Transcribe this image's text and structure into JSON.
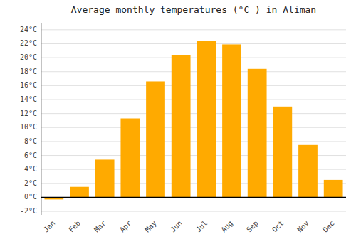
{
  "chart_data": {
    "type": "bar",
    "title": "Average monthly temperatures (°C ) in Aliman",
    "categories": [
      "Jan",
      "Feb",
      "Mar",
      "Apr",
      "May",
      "Jun",
      "Jul",
      "Aug",
      "Sep",
      "Oct",
      "Nov",
      "Dec"
    ],
    "values": [
      -0.3,
      1.5,
      5.4,
      11.3,
      16.6,
      20.4,
      22.4,
      21.9,
      18.4,
      13.0,
      7.5,
      2.5
    ],
    "color": "#FFAA00",
    "ylim": [
      -2.5,
      25
    ],
    "yticks": [
      {
        "value": -2,
        "label": "-2°C"
      },
      {
        "value": 0,
        "label": "0°C"
      },
      {
        "value": 2,
        "label": "2°C"
      },
      {
        "value": 4,
        "label": "4°C"
      },
      {
        "value": 6,
        "label": "6°C"
      },
      {
        "value": 8,
        "label": "8°C"
      },
      {
        "value": 10,
        "label": "10°C"
      },
      {
        "value": 12,
        "label": "12°C"
      },
      {
        "value": 14,
        "label": "14°C"
      },
      {
        "value": 16,
        "label": "16°C"
      },
      {
        "value": 18,
        "label": "18°C"
      },
      {
        "value": 20,
        "label": "20°C"
      },
      {
        "value": 22,
        "label": "22°C"
      },
      {
        "value": 24,
        "label": "24°C"
      }
    ],
    "grid": true
  }
}
